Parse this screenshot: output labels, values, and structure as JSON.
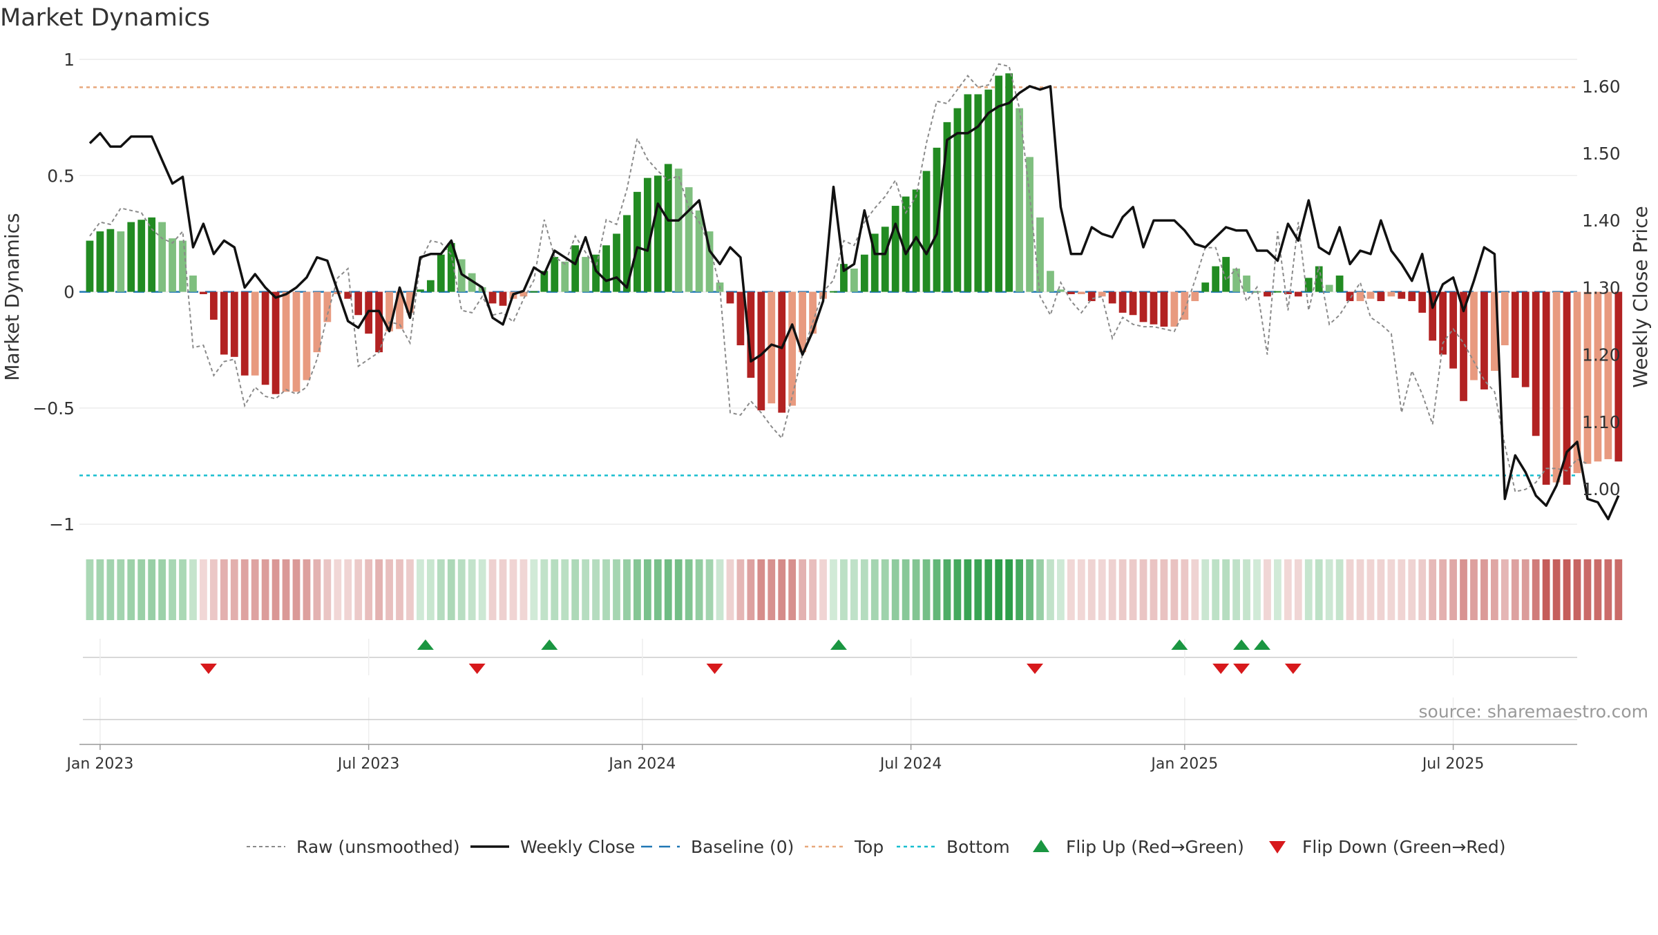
{
  "chart_data": {
    "type": "bar",
    "title": "Market Dynamics",
    "ylabel": "Market Dynamics",
    "y2label": "Weekly Close Price",
    "ylim": [
      -1.05,
      1.0
    ],
    "y2lim": [
      0.93,
      1.64
    ],
    "y_ticks": [
      {
        "value": 1,
        "label": "1"
      },
      {
        "value": 0.5,
        "label": "0.5"
      },
      {
        "value": 0,
        "label": "0"
      },
      {
        "value": -0.5,
        "label": "−0.5"
      },
      {
        "value": -1,
        "label": "−1"
      }
    ],
    "y2_ticks": [
      "1.00",
      "1.10",
      "1.20",
      "1.30",
      "1.40",
      "1.50",
      "1.60"
    ],
    "x_ticks": [
      {
        "week": 1,
        "label": "Jan 2023"
      },
      {
        "week": 27,
        "label": "Jul 2023"
      },
      {
        "week": 53.5,
        "label": "Jan 2024"
      },
      {
        "week": 79.5,
        "label": "Jul 2024"
      },
      {
        "week": 106,
        "label": "Jan 2025"
      },
      {
        "week": 132,
        "label": "Jul 2025"
      }
    ],
    "week_range": [
      -1,
      144
    ],
    "top_level": 0.88,
    "bottom_level": -0.79,
    "baseline_level": 0,
    "bars": [
      0.22,
      0.26,
      0.27,
      0.26,
      0.3,
      0.31,
      0.32,
      0.3,
      0.23,
      0.22,
      0.07,
      -0.01,
      -0.12,
      -0.27,
      -0.28,
      -0.36,
      -0.36,
      -0.4,
      -0.44,
      -0.43,
      -0.43,
      -0.38,
      -0.26,
      -0.13,
      -0.01,
      -0.03,
      -0.1,
      -0.18,
      -0.26,
      -0.17,
      -0.16,
      -0.09,
      0.01,
      0.05,
      0.16,
      0.21,
      0.14,
      0.08,
      0.02,
      -0.05,
      -0.06,
      -0.03,
      -0.02,
      0.0,
      0.09,
      0.15,
      0.13,
      0.2,
      0.15,
      0.16,
      0.2,
      0.25,
      0.33,
      0.43,
      0.49,
      0.5,
      0.55,
      0.53,
      0.45,
      0.35,
      0.26,
      0.04,
      -0.05,
      -0.23,
      -0.37,
      -0.51,
      -0.48,
      -0.52,
      -0.49,
      -0.26,
      -0.18,
      -0.03,
      0.0,
      0.12,
      0.1,
      0.16,
      0.25,
      0.28,
      0.37,
      0.41,
      0.44,
      0.52,
      0.62,
      0.73,
      0.79,
      0.85,
      0.85,
      0.87,
      0.93,
      0.94,
      0.79,
      0.58,
      0.32,
      0.09,
      0.01,
      -0.01,
      -0.01,
      -0.04,
      -0.02,
      -0.05,
      -0.09,
      -0.1,
      -0.13,
      -0.14,
      -0.15,
      -0.15,
      -0.12,
      -0.04,
      0.04,
      0.11,
      0.15,
      0.1,
      0.07,
      0.0,
      -0.02,
      0.0,
      -0.01,
      -0.02,
      0.06,
      0.11,
      0.03,
      0.07,
      -0.04,
      -0.04,
      -0.03,
      -0.04,
      -0.02,
      -0.03,
      -0.04,
      -0.09,
      -0.21,
      -0.27,
      -0.33,
      -0.47,
      -0.38,
      -0.42,
      -0.34,
      -0.23,
      -0.37,
      -0.41,
      -0.62,
      -0.83,
      -0.82,
      -0.83,
      -0.78,
      -0.74,
      -0.73,
      -0.72,
      -0.73
    ],
    "series": [
      {
        "name": "Raw (unsmoothed)",
        "values": [
          0.24,
          0.3,
          0.29,
          0.36,
          0.35,
          0.34,
          0.27,
          0.23,
          0.21,
          0.26,
          -0.24,
          -0.23,
          -0.36,
          -0.3,
          -0.29,
          -0.49,
          -0.41,
          -0.45,
          -0.46,
          -0.42,
          -0.44,
          -0.41,
          -0.29,
          -0.1,
          0.06,
          0.1,
          -0.32,
          -0.29,
          -0.26,
          -0.13,
          -0.14,
          -0.22,
          0.13,
          0.22,
          0.21,
          0.16,
          -0.08,
          -0.09,
          -0.02,
          -0.1,
          -0.09,
          -0.13,
          -0.03,
          0.05,
          0.31,
          0.15,
          0.12,
          0.24,
          0.17,
          0.1,
          0.31,
          0.29,
          0.44,
          0.66,
          0.57,
          0.52,
          0.48,
          0.5,
          0.36,
          0.3,
          0.2,
          0.02,
          -0.52,
          -0.53,
          -0.47,
          -0.52,
          -0.58,
          -0.63,
          -0.45,
          -0.27,
          -0.13,
          0.0,
          0.05,
          0.22,
          0.2,
          0.3,
          0.36,
          0.41,
          0.48,
          0.34,
          0.41,
          0.64,
          0.82,
          0.81,
          0.87,
          0.93,
          0.88,
          0.89,
          0.98,
          0.97,
          0.79,
          0.41,
          -0.02,
          -0.1,
          0.04,
          -0.04,
          -0.09,
          -0.03,
          -0.02,
          -0.2,
          -0.11,
          -0.14,
          -0.15,
          -0.15,
          -0.16,
          -0.17,
          -0.08,
          0.05,
          0.19,
          0.19,
          0.05,
          0.1,
          -0.04,
          0.02,
          -0.27,
          0.26,
          -0.08,
          0.3,
          -0.08,
          0.11,
          -0.14,
          -0.1,
          -0.03,
          0.04,
          -0.11,
          -0.14,
          -0.18,
          -0.52,
          -0.34,
          -0.44,
          -0.57,
          -0.22,
          -0.16,
          -0.22,
          -0.3,
          -0.38,
          -0.43,
          -0.66,
          -0.86,
          -0.85,
          -0.82,
          -0.76,
          -0.76,
          -0.77,
          -0.72,
          -0.74
        ]
      },
      {
        "name": "Weekly Close",
        "values": [
          1.515,
          1.53,
          1.51,
          1.51,
          1.525,
          1.525,
          1.525,
          1.49,
          1.455,
          1.465,
          1.36,
          1.395,
          1.35,
          1.37,
          1.36,
          1.3,
          1.32,
          1.3,
          1.285,
          1.29,
          1.3,
          1.315,
          1.345,
          1.34,
          1.295,
          1.25,
          1.24,
          1.265,
          1.265,
          1.235,
          1.3,
          1.255,
          1.345,
          1.35,
          1.35,
          1.37,
          1.32,
          1.31,
          1.3,
          1.255,
          1.245,
          1.29,
          1.295,
          1.33,
          1.32,
          1.355,
          1.345,
          1.335,
          1.375,
          1.325,
          1.31,
          1.315,
          1.3,
          1.36,
          1.355,
          1.425,
          1.4,
          1.4,
          1.415,
          1.43,
          1.355,
          1.335,
          1.36,
          1.345,
          1.19,
          1.2,
          1.215,
          1.21,
          1.245,
          1.2,
          1.235,
          1.28,
          1.45,
          1.325,
          1.335,
          1.415,
          1.35,
          1.35,
          1.395,
          1.35,
          1.375,
          1.35,
          1.38,
          1.52,
          1.53,
          1.53,
          1.54,
          1.56,
          1.57,
          1.575,
          1.59,
          1.6,
          1.595,
          1.6,
          1.42,
          1.35,
          1.35,
          1.39,
          1.38,
          1.375,
          1.405,
          1.42,
          1.36,
          1.4,
          1.4,
          1.4,
          1.385,
          1.365,
          1.36,
          1.375,
          1.39,
          1.385,
          1.385,
          1.355,
          1.355,
          1.34,
          1.395,
          1.37,
          1.43,
          1.36,
          1.35,
          1.39,
          1.335,
          1.355,
          1.35,
          1.4,
          1.355,
          1.335,
          1.31,
          1.35,
          1.27,
          1.305,
          1.315,
          1.265,
          1.31,
          1.36,
          1.35,
          0.985,
          1.05,
          1.025,
          0.99,
          0.975,
          1.005,
          1.055,
          1.07,
          0.985,
          0.98,
          0.955,
          0.99
        ]
      },
      {
        "name": "Baseline (0)"
      },
      {
        "name": "Top"
      },
      {
        "name": "Bottom"
      },
      {
        "name": "Flip Up (Red→Green)",
        "weeks": [
          32.5,
          44.5,
          72.5,
          105.5,
          111.5,
          113.5
        ]
      },
      {
        "name": "Flip Down (Green→Red)",
        "weeks": [
          11.5,
          37.5,
          60.5,
          91.5,
          109.5,
          111.5,
          116.5
        ]
      }
    ],
    "legend_position": "bottom-center",
    "grid": true,
    "annotation": "source: sharemaestro.com",
    "colors": {
      "strong_green": "#228b22",
      "light_green": "#7fbf7f",
      "strong_red": "#b22222",
      "light_red": "#e89a7f",
      "price": "#111111",
      "raw": "#8a8a8a",
      "baseline": "#1f77b4",
      "top": "#e8a87c",
      "bottom": "#17becf",
      "flip_up": "#1a9641",
      "flip_down": "#d7191c"
    }
  }
}
